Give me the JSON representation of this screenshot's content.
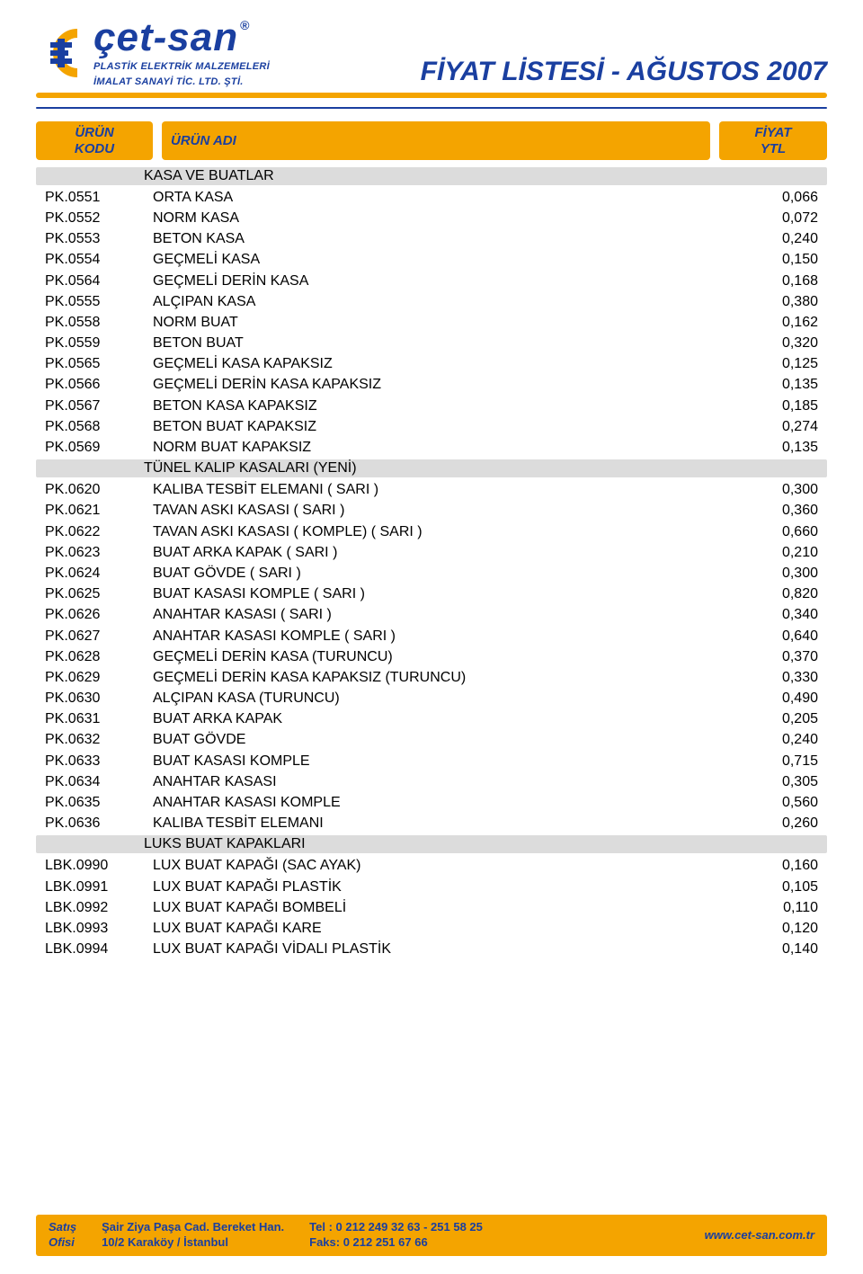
{
  "colors": {
    "brand_blue": "#1a3fa0",
    "accent_orange": "#f4a400",
    "header_orange": "#f4a400",
    "section_gray": "#dcdcdc",
    "text_black": "#000000",
    "footer_text": "#1a3fa0"
  },
  "brand": {
    "name": "çet-san",
    "reg": "®",
    "sub1": "PLASTİK ELEKTRİK MALZEMELERİ",
    "sub2": "İMALAT SANAYİ TİC. LTD. ŞTİ."
  },
  "title": "FİYAT LİSTESİ - AĞUSTOS 2007",
  "columns": {
    "code_l1": "ÜRÜN",
    "code_l2": "KODU",
    "name": "ÜRÜN ADI",
    "price_l1": "FİYAT",
    "price_l2": "YTL"
  },
  "sections": [
    {
      "title": "KASA VE BUATLAR",
      "rows": [
        {
          "code": "PK.0551",
          "name": "ORTA KASA",
          "price": "0,066"
        },
        {
          "code": "PK.0552",
          "name": "NORM KASA",
          "price": "0,072"
        },
        {
          "code": "PK.0553",
          "name": "BETON KASA",
          "price": "0,240"
        },
        {
          "code": "PK.0554",
          "name": "GEÇMELİ KASA",
          "price": "0,150"
        },
        {
          "code": "PK.0564",
          "name": "GEÇMELİ DERİN KASA",
          "price": "0,168"
        },
        {
          "code": "PK.0555",
          "name": "ALÇIPAN KASA",
          "price": "0,380"
        },
        {
          "code": "PK.0558",
          "name": "NORM BUAT",
          "price": "0,162"
        },
        {
          "code": "PK.0559",
          "name": "BETON BUAT",
          "price": "0,320"
        },
        {
          "code": "PK.0565",
          "name": "GEÇMELİ KASA KAPAKSIZ",
          "price": "0,125"
        },
        {
          "code": "PK.0566",
          "name": "GEÇMELİ DERİN KASA KAPAKSIZ",
          "price": "0,135"
        },
        {
          "code": "PK.0567",
          "name": "BETON KASA KAPAKSIZ",
          "price": "0,185"
        },
        {
          "code": "PK.0568",
          "name": "BETON BUAT KAPAKSIZ",
          "price": "0,274"
        },
        {
          "code": "PK.0569",
          "name": "NORM BUAT KAPAKSIZ",
          "price": "0,135"
        }
      ]
    },
    {
      "title": "TÜNEL KALIP KASALARI (YENİ)",
      "rows": [
        {
          "code": "PK.0620",
          "name": "KALIBA TESBİT ELEMANI ( SARI )",
          "price": "0,300"
        },
        {
          "code": "PK.0621",
          "name": "TAVAN ASKI KASASI  ( SARI )",
          "price": "0,360"
        },
        {
          "code": "PK.0622",
          "name": "TAVAN ASKI KASASI ( KOMPLE) ( SARI )",
          "price": "0,660"
        },
        {
          "code": "PK.0623",
          "name": "BUAT ARKA KAPAK ( SARI )",
          "price": "0,210"
        },
        {
          "code": "PK.0624",
          "name": "BUAT GÖVDE ( SARI )",
          "price": "0,300"
        },
        {
          "code": "PK.0625",
          "name": "BUAT KASASI KOMPLE ( SARI )",
          "price": "0,820"
        },
        {
          "code": "PK.0626",
          "name": "ANAHTAR KASASI ( SARI )",
          "price": "0,340"
        },
        {
          "code": "PK.0627",
          "name": "ANAHTAR KASASI KOMPLE ( SARI )",
          "price": "0,640"
        },
        {
          "code": "PK.0628",
          "name": "GEÇMELİ DERİN KASA (TURUNCU)",
          "price": "0,370"
        },
        {
          "code": "PK.0629",
          "name": "GEÇMELİ DERİN KASA KAPAKSIZ (TURUNCU)",
          "price": "0,330"
        },
        {
          "code": "PK.0630",
          "name": "ALÇIPAN KASA (TURUNCU)",
          "price": "0,490"
        },
        {
          "code": "PK.0631",
          "name": "BUAT ARKA KAPAK",
          "price": "0,205"
        },
        {
          "code": "PK.0632",
          "name": "BUAT GÖVDE",
          "price": "0,240"
        },
        {
          "code": "PK.0633",
          "name": "BUAT KASASI KOMPLE",
          "price": "0,715"
        },
        {
          "code": "PK.0634",
          "name": "ANAHTAR KASASI",
          "price": "0,305"
        },
        {
          "code": "PK.0635",
          "name": "ANAHTAR KASASI KOMPLE",
          "price": "0,560"
        },
        {
          "code": "PK.0636",
          "name": "KALIBA TESBİT ELEMANI",
          "price": "0,260"
        }
      ]
    },
    {
      "title": "LUKS BUAT KAPAKLARI",
      "rows": [
        {
          "code": "LBK.0990",
          "name": "LUX BUAT KAPAĞI (SAC AYAK)",
          "price": "0,160"
        },
        {
          "code": "LBK.0991",
          "name": "LUX BUAT KAPAĞI PLASTİK",
          "price": "0,105"
        },
        {
          "code": "LBK.0992",
          "name": "LUX BUAT KAPAĞI BOMBELİ",
          "price": "0,110"
        },
        {
          "code": "LBK.0993",
          "name": "LUX BUAT KAPAĞI KARE",
          "price": "0,120"
        },
        {
          "code": "LBK.0994",
          "name": "LUX BUAT KAPAĞI VİDALI PLASTİK",
          "price": "0,140"
        }
      ]
    }
  ],
  "footer": {
    "office_l1": "Satış",
    "office_l2": "Ofisi",
    "address_l1": "Şair Ziya Paşa Cad. Bereket Han.",
    "address_l2": "10/2 Karaköy / İstanbul",
    "tel_label": "Tel",
    "tel_value": ": 0 212 249 32 63 - 251 58 25",
    "fax_label": "Faks:",
    "fax_value": " 0 212 251 67 66",
    "web": "www.cet-san.com.tr"
  }
}
